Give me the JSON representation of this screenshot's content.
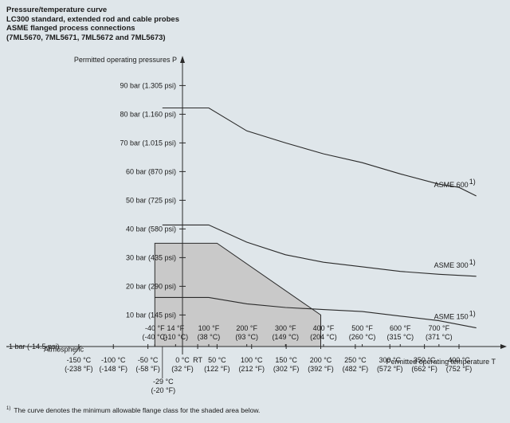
{
  "header": {
    "title": "Pressure/temperature curve",
    "subtitle_lines": [
      "LC300 standard, extended rod and cable probes",
      "ASME flanged process connections",
      "(7ML5670, 7ML5671, 7ML5672 and 7ML5673)"
    ]
  },
  "footnote": {
    "marker": "1)",
    "text": "The curve denotes the minimum allowable flange class for the shaded area below."
  },
  "colors": {
    "background": "#dfe6ea",
    "shaded_area": "#c9c9c9",
    "lines": "#2a2a2a"
  },
  "chart_data": {
    "type": "line",
    "ylabel": "Permitted operating pressures P",
    "xlabel": "Permitted operating temperature T",
    "x_unit": "°C",
    "y_unit": "bar",
    "xlim": [
      -180,
      425
    ],
    "ylim": [
      -1,
      95
    ],
    "y_ticks": [
      {
        "value": -1,
        "label": "-1 bar (-14.5 psi)"
      },
      {
        "value": 10,
        "label": "10 bar (145 psi)"
      },
      {
        "value": 20,
        "label": "20 bar (290 psi)"
      },
      {
        "value": 30,
        "label": "30 bar (435 psi)"
      },
      {
        "value": 40,
        "label": "40 bar (580 psi)"
      },
      {
        "value": 50,
        "label": "50 bar (725 psi)"
      },
      {
        "value": 60,
        "label": "60 bar (870 psi)"
      },
      {
        "value": 70,
        "label": "70 bar (1.015 psi)"
      },
      {
        "value": 80,
        "label": "80 bar (1.160 psi)"
      },
      {
        "value": 90,
        "label": "90 bar (1.305 psi)"
      }
    ],
    "x_ticks_bottom": [
      {
        "value": -150,
        "c": "-150 °C",
        "f": "(-238 °F)"
      },
      {
        "value": -100,
        "c": "-100 °C",
        "f": "(-148 °F)"
      },
      {
        "value": -50,
        "c": "-50 °C",
        "f": "(-58 °F)"
      },
      {
        "value": 0,
        "c": "0 °C",
        "f": "(32 °F)"
      },
      {
        "value": 22,
        "c": "RT",
        "f": ""
      },
      {
        "value": 50,
        "c": "50 °C",
        "f": "(122 °F)"
      },
      {
        "value": 100,
        "c": "100 °C",
        "f": "(212 °F)"
      },
      {
        "value": 150,
        "c": "150 °C",
        "f": "(302 °F)"
      },
      {
        "value": 200,
        "c": "200 °C",
        "f": "(392 °F)"
      },
      {
        "value": 250,
        "c": "250 °C",
        "f": "(482 °F)"
      },
      {
        "value": 300,
        "c": "300 °C",
        "f": "(572 °F)"
      },
      {
        "value": 350,
        "c": "350 °C",
        "f": "(662 °F)"
      },
      {
        "value": 400,
        "c": "400 °C",
        "f": "(752 °F)"
      }
    ],
    "x_ticks_top": [
      {
        "value": -40,
        "f": "-40 °F",
        "c": "(-40 °C)"
      },
      {
        "value": -10,
        "f": "14 °F",
        "c": "(-10 °C)"
      },
      {
        "value": 38,
        "f": "100 °F",
        "c": "(38 °C)"
      },
      {
        "value": 93,
        "f": "200 °F",
        "c": "(93 °C)"
      },
      {
        "value": 149,
        "f": "300 °F",
        "c": "(149 °C)"
      },
      {
        "value": 204,
        "f": "400 °F",
        "c": "(204 °C)"
      },
      {
        "value": 260,
        "f": "500 °F",
        "c": "(260 °C)"
      },
      {
        "value": 315,
        "f": "600 °F",
        "c": "(315 °C)"
      },
      {
        "value": 371,
        "f": "700 °F",
        "c": "(371 °C)"
      }
    ],
    "extra_tick": {
      "value": -29,
      "c": "-29 °C",
      "f": "(-20 °F)"
    },
    "atmospheric": {
      "label": "Atmospheric",
      "value": 0
    },
    "series": [
      {
        "name": "ASME 600",
        "sup": "1)",
        "points": [
          [
            -29,
            82.2
          ],
          [
            38,
            82.2
          ],
          [
            93,
            74.2
          ],
          [
            149,
            70.0
          ],
          [
            204,
            66.2
          ],
          [
            260,
            63.1
          ],
          [
            315,
            59.2
          ],
          [
            371,
            55.6
          ],
          [
            400,
            54.5
          ],
          [
            425,
            51.5
          ]
        ]
      },
      {
        "name": "ASME 300",
        "sup": "1)",
        "points": [
          [
            -29,
            41.4
          ],
          [
            38,
            41.4
          ],
          [
            93,
            35.4
          ],
          [
            149,
            31.0
          ],
          [
            204,
            28.4
          ],
          [
            260,
            26.8
          ],
          [
            315,
            25.2
          ],
          [
            371,
            24.2
          ],
          [
            425,
            23.5
          ]
        ]
      },
      {
        "name": "ASME 150",
        "sup": "1)",
        "points": [
          [
            -40,
            16.1
          ],
          [
            38,
            16.1
          ],
          [
            93,
            13.9
          ],
          [
            149,
            12.6
          ],
          [
            204,
            11.9
          ],
          [
            260,
            11.2
          ],
          [
            315,
            9.6
          ],
          [
            371,
            8.0
          ],
          [
            425,
            5.5
          ]
        ]
      }
    ],
    "shaded_area": {
      "points": [
        [
          -40,
          -1
        ],
        [
          -40,
          35
        ],
        [
          50,
          35
        ],
        [
          200,
          10
        ],
        [
          200,
          -1
        ]
      ]
    },
    "legend": "inline-right",
    "grid": false
  }
}
